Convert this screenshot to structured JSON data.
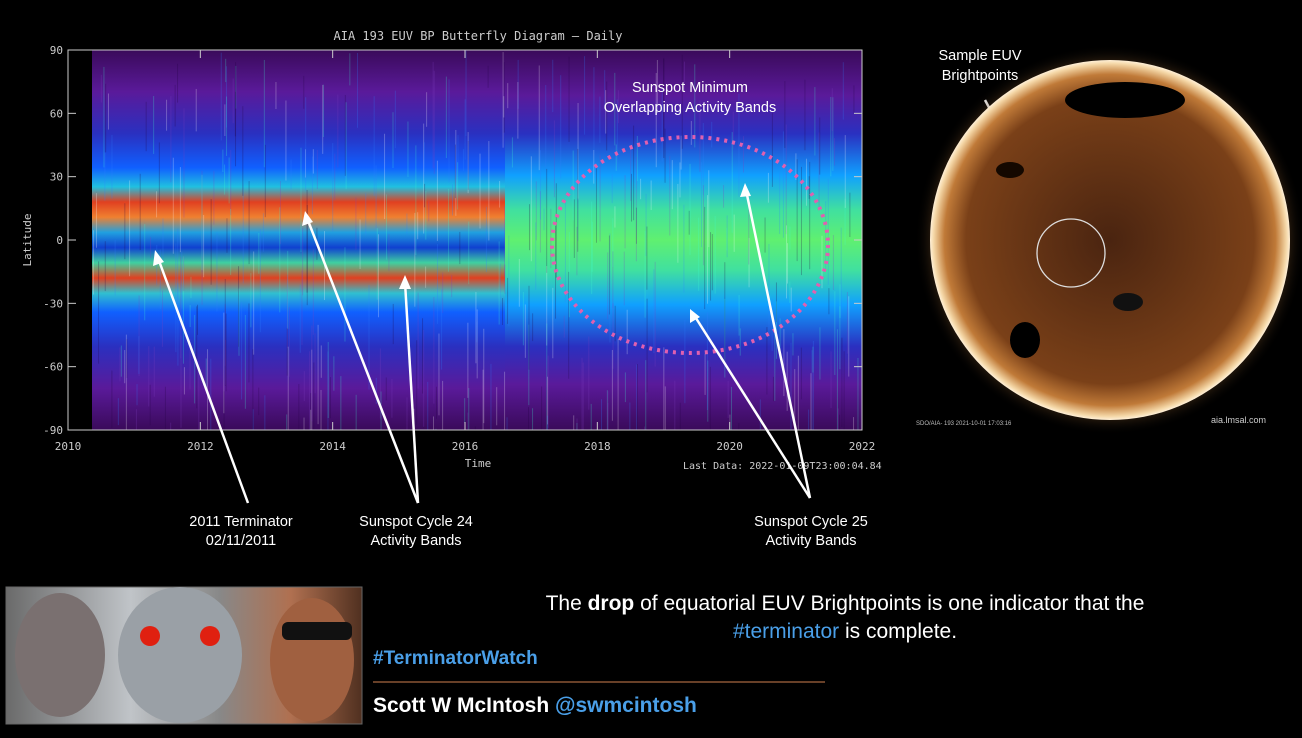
{
  "butterfly": {
    "title": "AIA 193 EUV BP Butterfly Diagram — Daily",
    "x_label": "Time",
    "y_label": "Latitude",
    "xlim": [
      2010,
      2022
    ],
    "ylim": [
      -90,
      90
    ],
    "xticks": [
      2010,
      2012,
      2014,
      2016,
      2018,
      2020,
      2022
    ],
    "yticks": [
      -90,
      -60,
      -30,
      0,
      30,
      60,
      90
    ],
    "last_data": "Last Data: 2022-01-09T23:00:04.84",
    "annotations": {
      "minimum": [
        "Sunspot Minimum",
        "Overlapping Activity Bands"
      ],
      "terminator": [
        "2011 Terminator",
        "02/11/2011"
      ],
      "cycle24": [
        "Sunspot Cycle 24",
        "Activity Bands"
      ],
      "cycle25": [
        "Sunspot Cycle 25",
        "Activity Bands"
      ]
    }
  },
  "sun": {
    "label": [
      "Sample EUV",
      "Brightpoints"
    ],
    "caption": "SDO/AIA- 193 2021-10-01 17:03:16",
    "site": "aia.lmsal.com"
  },
  "message": {
    "part1": "The",
    "bold": "drop",
    "part2": "of equatorial EUV Brightpoints is one indicator that the",
    "hashtag": "#terminator",
    "part3": "is complete."
  },
  "footer": {
    "hashtag": "#TerminatorWatch",
    "author": "Scott W McIntosh",
    "handle": "@swmcintosh"
  }
}
